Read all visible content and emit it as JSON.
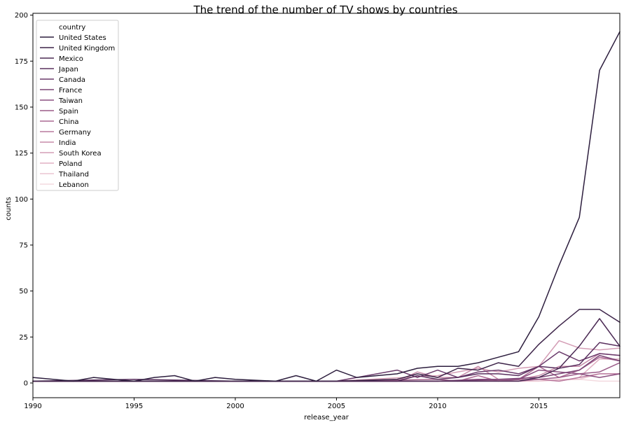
{
  "chart_data": {
    "type": "line",
    "title": "The trend of the number of TV shows by countries",
    "xlabel": "release_year",
    "ylabel": "counts",
    "xlim": [
      1990,
      2019
    ],
    "ylim": [
      -8,
      201
    ],
    "xticks": [
      1990,
      1995,
      2000,
      2005,
      2010,
      2015
    ],
    "yticks": [
      0,
      25,
      50,
      75,
      100,
      125,
      150,
      175,
      200
    ],
    "grid": false,
    "legend_title": "country",
    "legend_position": "top-left",
    "series": [
      {
        "name": "United States",
        "color": "#2d1e3e",
        "x": [
          1990,
          1992,
          1993,
          1995,
          1996,
          1997,
          1998,
          1999,
          2000,
          2002,
          2003,
          2004,
          2005,
          2006,
          2007,
          2008,
          2009,
          2010,
          2011,
          2012,
          2013,
          2014,
          2015,
          2016,
          2017,
          2018,
          2019
        ],
        "y": [
          3,
          1,
          3,
          1,
          3,
          4,
          1,
          3,
          2,
          1,
          4,
          1,
          7,
          3,
          4,
          5,
          8,
          9,
          9,
          11,
          14,
          17,
          36,
          64,
          90,
          170,
          191
        ]
      },
      {
        "name": "United Kingdom",
        "color": "#3d2449",
        "x": [
          1990,
          1995,
          2000,
          2005,
          2008,
          2009,
          2010,
          2011,
          2012,
          2013,
          2014,
          2015,
          2016,
          2017,
          2018,
          2019
        ],
        "y": [
          1,
          1,
          1,
          1,
          2,
          5,
          3,
          8,
          7,
          11,
          9,
          21,
          31,
          40,
          40,
          33
        ]
      },
      {
        "name": "Mexico",
        "color": "#4b2a54",
        "x": [
          1990,
          2005,
          2010,
          2013,
          2014,
          2015,
          2016,
          2017,
          2018,
          2019
        ],
        "y": [
          1,
          1,
          1,
          1,
          1,
          3,
          8,
          20,
          35,
          20
        ]
      },
      {
        "name": "Japan",
        "color": "#5a305f",
        "x": [
          1990,
          1995,
          2000,
          2005,
          2008,
          2009,
          2010,
          2011,
          2012,
          2013,
          2014,
          2015,
          2016,
          2017,
          2018,
          2019
        ],
        "y": [
          1,
          2,
          1,
          1,
          1,
          4,
          2,
          3,
          5,
          5,
          4,
          9,
          8,
          10,
          22,
          20
        ]
      },
      {
        "name": "Canada",
        "color": "#6a3a6b",
        "x": [
          1990,
          2000,
          2005,
          2008,
          2009,
          2010,
          2011,
          2012,
          2013,
          2014,
          2015,
          2016,
          2017,
          2018,
          2019
        ],
        "y": [
          1,
          1,
          1,
          7,
          3,
          7,
          3,
          6,
          7,
          5,
          9,
          17,
          12,
          16,
          15
        ]
      },
      {
        "name": "France",
        "color": "#7b4576",
        "x": [
          1990,
          2005,
          2010,
          2013,
          2015,
          2016,
          2017,
          2018,
          2019
        ],
        "y": [
          1,
          1,
          1,
          2,
          3,
          5,
          7,
          15,
          12
        ]
      },
      {
        "name": "Taiwan",
        "color": "#8b5080",
        "x": [
          1990,
          2005,
          2010,
          2012,
          2014,
          2015,
          2016,
          2017,
          2018,
          2019
        ],
        "y": [
          1,
          1,
          1,
          2,
          2,
          7,
          6,
          5,
          3,
          5
        ]
      },
      {
        "name": "Spain",
        "color": "#9b5c89",
        "x": [
          1990,
          2005,
          2010,
          2014,
          2015,
          2016,
          2017,
          2018,
          2019
        ],
        "y": [
          1,
          1,
          1,
          1,
          2,
          3,
          5,
          6,
          11
        ]
      },
      {
        "name": "China",
        "color": "#ab6a93",
        "x": [
          1990,
          2005,
          2010,
          2011,
          2012,
          2013,
          2014,
          2015,
          2016,
          2017,
          2018,
          2019
        ],
        "y": [
          1,
          1,
          2,
          1,
          4,
          1,
          2,
          9,
          3,
          7,
          14,
          12
        ]
      },
      {
        "name": "Germany",
        "color": "#b97a9e",
        "x": [
          1990,
          2005,
          2010,
          2015,
          2016,
          2017,
          2018,
          2019
        ],
        "y": [
          1,
          1,
          1,
          2,
          1,
          3,
          5,
          5
        ]
      },
      {
        "name": "India",
        "color": "#c78ba9",
        "x": [
          1990,
          2005,
          2008,
          2009,
          2010,
          2011,
          2012,
          2013,
          2014,
          2015,
          2016,
          2017,
          2018,
          2019
        ],
        "y": [
          1,
          1,
          1,
          6,
          3,
          3,
          9,
          2,
          2,
          4,
          9,
          9,
          16,
          15
        ]
      },
      {
        "name": "South Korea",
        "color": "#d49db5",
        "x": [
          1990,
          2005,
          2010,
          2012,
          2013,
          2014,
          2015,
          2016,
          2017,
          2018,
          2019
        ],
        "y": [
          1,
          1,
          4,
          8,
          6,
          8,
          9,
          23,
          19,
          18,
          19
        ]
      },
      {
        "name": "Poland",
        "color": "#e0b1c3",
        "x": [
          1990,
          2010,
          2015,
          2016,
          2017,
          2018,
          2019
        ],
        "y": [
          1,
          1,
          2,
          1,
          3,
          13,
          13
        ]
      },
      {
        "name": "Thailand",
        "color": "#ebc6d2",
        "x": [
          1990,
          2010,
          2015,
          2016,
          2017,
          2018,
          2019
        ],
        "y": [
          1,
          1,
          1,
          2,
          2,
          5,
          5
        ]
      },
      {
        "name": "Lebanon",
        "color": "#f3dadf",
        "x": [
          1990,
          2010,
          2015,
          2017,
          2018,
          2019
        ],
        "y": [
          1,
          1,
          1,
          2,
          1,
          1
        ]
      }
    ]
  }
}
